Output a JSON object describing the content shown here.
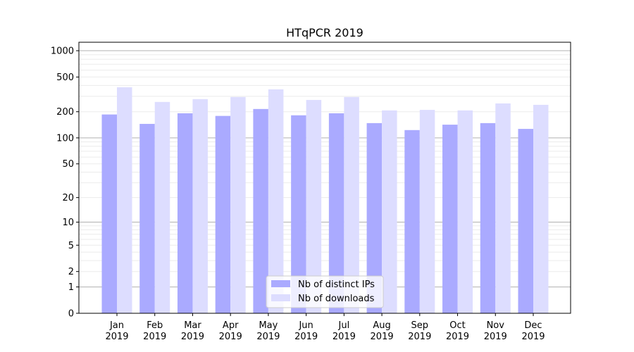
{
  "chart_data": {
    "type": "bar",
    "title": "HTqPCR 2019",
    "xlabel": "",
    "ylabel": "",
    "yscale": "log(1+x)",
    "ylim": [
      0,
      1250
    ],
    "yticks": [
      0,
      1,
      2,
      5,
      10,
      20,
      50,
      100,
      200,
      500,
      1000
    ],
    "grid": true,
    "legend_position": "lower-center",
    "categories": [
      "Jan\n2019",
      "Feb\n2019",
      "Mar\n2019",
      "Apr\n2019",
      "May\n2019",
      "Jun\n2019",
      "Jul\n2019",
      "Aug\n2019",
      "Sep\n2019",
      "Oct\n2019",
      "Nov\n2019",
      "Dec\n2019"
    ],
    "series": [
      {
        "name": "Nb of distinct IPs",
        "color": "#aaaaff",
        "values": [
          186,
          145,
          192,
          179,
          215,
          182,
          192,
          148,
          123,
          142,
          148,
          127
        ]
      },
      {
        "name": "Nb of downloads",
        "color": "#ddddff",
        "values": [
          382,
          259,
          279,
          295,
          361,
          273,
          295,
          207,
          210,
          207,
          249,
          240
        ]
      }
    ]
  }
}
